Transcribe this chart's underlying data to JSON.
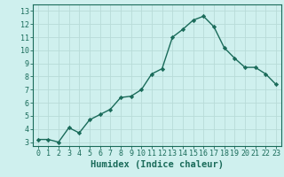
{
  "x": [
    0,
    1,
    2,
    3,
    4,
    5,
    6,
    7,
    8,
    9,
    10,
    11,
    12,
    13,
    14,
    15,
    16,
    17,
    18,
    19,
    20,
    21,
    22,
    23
  ],
  "y": [
    3.2,
    3.2,
    3.0,
    4.1,
    3.7,
    4.7,
    5.1,
    5.5,
    6.4,
    6.5,
    7.0,
    8.2,
    8.6,
    11.0,
    11.6,
    12.3,
    12.6,
    11.8,
    10.2,
    9.4,
    8.7,
    8.7,
    8.2,
    7.4
  ],
  "line_color": "#1a6b5a",
  "marker": "D",
  "marker_size": 2.2,
  "bg_color": "#cff0ee",
  "grid_color": "#b8dbd8",
  "xlabel": "Humidex (Indice chaleur)",
  "ylabel_ticks": [
    3,
    4,
    5,
    6,
    7,
    8,
    9,
    10,
    11,
    12,
    13
  ],
  "ylim": [
    2.7,
    13.5
  ],
  "xlim": [
    -0.5,
    23.5
  ],
  "xtick_labels": [
    "0",
    "1",
    "2",
    "3",
    "4",
    "5",
    "6",
    "7",
    "8",
    "9",
    "10",
    "11",
    "12",
    "13",
    "14",
    "15",
    "16",
    "17",
    "18",
    "19",
    "20",
    "21",
    "22",
    "23"
  ],
  "axis_color": "#1a6b5a",
  "tick_color": "#1a6b5a",
  "label_fontsize": 7.5,
  "tick_fontsize": 6.0,
  "linewidth": 1.0
}
